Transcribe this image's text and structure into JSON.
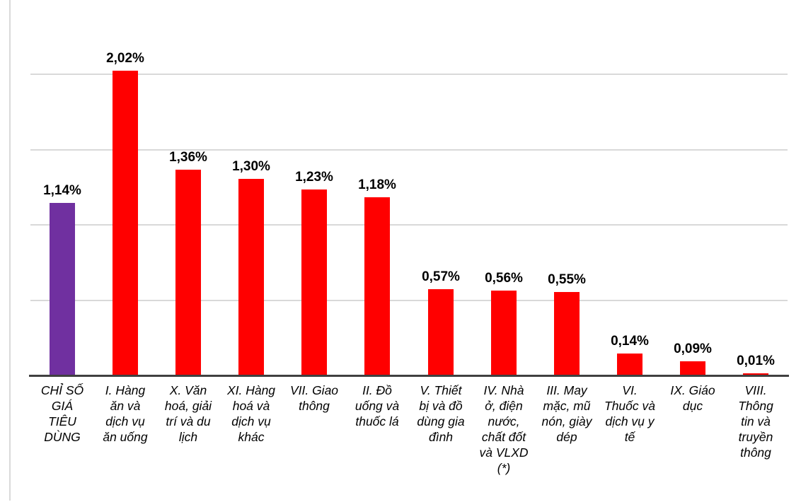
{
  "chart_data": {
    "type": "bar",
    "title": "",
    "xlabel": "",
    "ylabel": "",
    "legend": "none",
    "grid": true,
    "gridline_step": 0.5,
    "ylim": [
      0,
      2.1
    ],
    "y_tick_labels_visible": false,
    "categories": [
      "CHỈ SỐ\nGIÁ\nTIÊU\nDÙNG",
      "I. Hàng\năn và\ndịch vụ\năn uống",
      "X. Văn\nhoá, giải\ntrí và du\nlịch",
      "XI. Hàng\nhoá và\ndịch vụ\nkhác",
      "VII. Giao\nthông",
      "II. Đồ\nuống và\nthuốc lá",
      "V. Thiết\nbị và đồ\ndùng gia\nđình",
      "IV. Nhà\nở, điện\nnước,\nchất đốt\nvà VLXD\n(*)",
      "III. May\nmặc, mũ\nnón, giày\ndép",
      "VI.\nThuốc và\ndịch vụ y\ntế",
      "IX. Giáo\ndục",
      "VIII.\nThông\ntin và\ntruyền\nthông"
    ],
    "values": [
      1.14,
      2.02,
      1.36,
      1.3,
      1.23,
      1.18,
      0.57,
      0.56,
      0.55,
      0.14,
      0.09,
      0.01
    ],
    "value_labels": [
      "1,14%",
      "2,02%",
      "1,36%",
      "1,30%",
      "1,23%",
      "1,18%",
      "0,57%",
      "0,56%",
      "0,55%",
      "0,14%",
      "0,09%",
      "0,01%"
    ],
    "highlight_index": 0,
    "colors": {
      "bar_default": "#FF0000",
      "bar_highlight": "#7030A0",
      "gridline": "#D9D9D9",
      "axis": "#404040",
      "label_text": "#000000",
      "chart_border": "#D9D9D9",
      "background": "#FFFFFF"
    }
  }
}
